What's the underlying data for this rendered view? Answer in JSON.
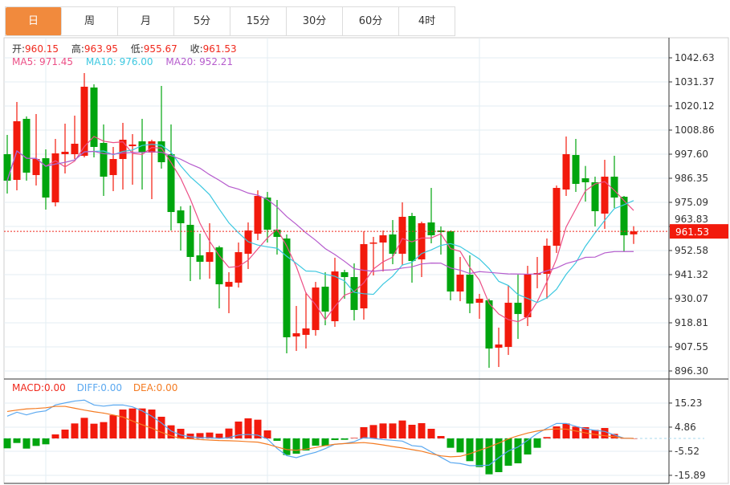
{
  "tabs": [
    {
      "label": "日",
      "active": true
    },
    {
      "label": "周",
      "active": false
    },
    {
      "label": "月",
      "active": false
    },
    {
      "label": "5分",
      "active": false
    },
    {
      "label": "15分",
      "active": false
    },
    {
      "label": "30分",
      "active": false
    },
    {
      "label": "60分",
      "active": false
    },
    {
      "label": "4时",
      "active": false
    }
  ],
  "ohlc_info": {
    "open_label": "开:",
    "open": "960.15",
    "high_label": "高:",
    "high": "963.95",
    "low_label": "低:",
    "low": "955.67",
    "close_label": "收:",
    "close": "961.53"
  },
  "ma_info": {
    "ma5": "MA5: 971.45",
    "ma10": "MA10: 976.00",
    "ma20": "MA20: 952.21"
  },
  "macd_info": {
    "macd": "MACD:0.00",
    "diff": "DIFF:0.00",
    "dea": "DEA:0.00"
  },
  "colors": {
    "up": "#f21a0c",
    "down": "#00a50e",
    "ma5": "#ec4f86",
    "ma10": "#3cc8e0",
    "ma20": "#b65ccd",
    "diff": "#5aa8f0",
    "dea": "#f47b22",
    "accent": "#f18a3d"
  },
  "chart_data": [
    {
      "type": "candlestick",
      "title": "",
      "y_ticks": [
        "1042.63",
        "1031.37",
        "1020.12",
        "1008.86",
        "997.60",
        "986.35",
        "975.09",
        "963.83",
        "952.58",
        "941.32",
        "930.07",
        "918.81",
        "907.55",
        "896.30"
      ],
      "ylim": [
        896.3,
        1042.63
      ],
      "current_price": "961.53",
      "ohlc": [
        [
          997.6,
          985.22,
          1006.61,
          979.21
        ],
        [
          985.59,
          1012.99,
          1022.0,
          980.71
        ],
        [
          1014.11,
          988.97,
          1015.24,
          985.22
        ],
        [
          987.84,
          995.35,
          1016.36,
          982.96
        ],
        [
          995.72,
          977.34,
          999.85,
          971.71
        ],
        [
          975.09,
          997.97,
          1004.73,
          973.21
        ],
        [
          997.6,
          998.73,
          1011.86,
          988.59
        ],
        [
          997.6,
          1002.48,
          1015.61,
          995.35
        ],
        [
          996.85,
          1029.12,
          1035.5,
          996.1
        ],
        [
          1028.75,
          1000.98,
          1030.25,
          996.1
        ],
        [
          1002.85,
          987.09,
          1011.49,
          978.09
        ],
        [
          987.84,
          995.35,
          1000.98,
          980.34
        ],
        [
          995.35,
          1004.35,
          1012.24,
          981.09
        ],
        [
          1001.35,
          1002.1,
          1006.98,
          983.34
        ],
        [
          1003.6,
          998.35,
          1014.11,
          981.09
        ],
        [
          998.35,
          1003.6,
          1004.35,
          976.59
        ],
        [
          1003.6,
          993.85,
          1029.5,
          990.85
        ],
        [
          997.6,
          970.58,
          1011.49,
          961.95
        ],
        [
          971.33,
          965.33,
          973.21,
          952.57
        ],
        [
          964.58,
          949.57,
          973.58,
          938.31
        ],
        [
          950.32,
          947.32,
          960.45,
          939.06
        ],
        [
          947.32,
          951.82,
          965.33,
          939.43
        ],
        [
          954.07,
          936.81,
          954.82,
          925.55
        ],
        [
          935.68,
          937.93,
          942.44,
          923.3
        ],
        [
          937.56,
          951.82,
          956.32,
          935.3
        ],
        [
          951.07,
          961.95,
          965.7,
          943.94
        ],
        [
          960.45,
          978.09,
          980.71,
          957.45
        ],
        [
          977.34,
          962.32,
          979.96,
          956.32
        ],
        [
          962.32,
          958.95,
          976.21,
          950.69
        ],
        [
          958.2,
          912.04,
          960.08,
          904.54
        ],
        [
          912.42,
          913.92,
          926.68,
          905.66
        ],
        [
          913.17,
          916.17,
          933.06,
          906.79
        ],
        [
          915.42,
          935.3,
          937.93,
          912.79
        ],
        [
          935.68,
          924.05,
          942.44,
          917.67
        ],
        [
          919.55,
          942.81,
          949.19,
          916.92
        ],
        [
          942.44,
          940.19,
          943.56,
          930.05
        ],
        [
          940.19,
          924.8,
          946.57,
          919.92
        ],
        [
          925.55,
          955.57,
          961.58,
          920.3
        ],
        [
          955.95,
          956.32,
          958.95,
          940.94
        ],
        [
          956.32,
          959.7,
          961.95,
          942.81
        ],
        [
          960.08,
          951.07,
          966.83,
          946.19
        ],
        [
          951.07,
          968.33,
          975.09,
          945.81
        ],
        [
          968.71,
          947.69,
          970.21,
          937.56
        ],
        [
          948.44,
          965.33,
          966.08,
          940.19
        ],
        [
          965.7,
          959.7,
          981.84,
          955.95
        ],
        [
          961.95,
          961.2,
          963.83,
          950.69
        ],
        [
          961.58,
          933.43,
          961.95,
          929.3
        ],
        [
          933.43,
          941.31,
          949.57,
          928.92
        ],
        [
          941.31,
          927.8,
          950.32,
          923.3
        ],
        [
          928.18,
          930.05,
          932.31,
          920.67
        ],
        [
          929.3,
          906.79,
          930.05,
          897.78
        ],
        [
          907.17,
          908.67,
          916.55,
          898.16
        ],
        [
          907.54,
          928.18,
          936.43,
          903.79
        ],
        [
          928.18,
          922.92,
          941.31,
          911.29
        ],
        [
          921.42,
          941.69,
          945.44,
          917.3
        ],
        [
          941.31,
          942.06,
          949.57,
          934.93
        ],
        [
          941.69,
          954.82,
          958.2,
          930.05
        ],
        [
          954.82,
          981.84,
          982.96,
          951.44
        ],
        [
          981.09,
          997.6,
          1005.86,
          978.09
        ],
        [
          997.22,
          983.72,
          1004.73,
          979.96
        ],
        [
          986.34,
          984.47,
          992.1,
          975.46
        ],
        [
          984.47,
          970.96,
          987.09,
          963.83
        ],
        [
          969.83,
          987.09,
          994.97,
          962.7
        ],
        [
          987.09,
          977.34,
          996.85,
          972.46
        ],
        [
          977.72,
          959.7,
          978.09,
          952.19
        ],
        [
          960.15,
          961.53,
          963.95,
          955.67
        ]
      ],
      "ma_periods": [
        5,
        10,
        20
      ]
    },
    {
      "type": "bar+line",
      "title": "MACD",
      "y_ticks": [
        "15.23",
        "4.86",
        "-5.52",
        "-15.89"
      ],
      "ylim": [
        -15.89,
        15.23
      ],
      "macd_hist": [
        -4.26,
        -1.96,
        -4.38,
        -3.23,
        -2.53,
        1.73,
        3.8,
        6.45,
        8.87,
        6.34,
        7.03,
        10.0,
        12.44,
        12.9,
        12.9,
        12.44,
        9.33,
        5.65,
        4.15,
        2.07,
        2.3,
        2.53,
        2.07,
        4.26,
        7.26,
        8.64,
        8.06,
        3.46,
        -1.04,
        -7.14,
        -6.57,
        -5.18,
        -3.11,
        -3.23,
        -0.69,
        -0.58,
        0.23,
        4.84,
        5.76,
        6.45,
        6.45,
        7.72,
        5.88,
        6.57,
        4.15,
        1.04,
        -4.03,
        -5.99,
        -9.79,
        -12.33,
        -15.44,
        -14.52,
        -11.75,
        -10.71,
        -6.91,
        -4.03,
        0.58,
        5.18,
        6.45,
        5.07,
        4.84,
        3.69,
        4.49,
        1.96,
        0.1,
        0
      ],
      "diff": [
        9.56,
        11.29,
        10.14,
        11.29,
        11.87,
        14.4,
        15.3,
        16.1,
        16.5,
        14.4,
        13.9,
        14.4,
        14.4,
        13.6,
        11.87,
        9.56,
        6.68,
        3.2,
        1.5,
        0.7,
        0.35,
        0.35,
        0,
        0.35,
        1.5,
        1.7,
        1.4,
        -0.2,
        -4.3,
        -7.4,
        -8.3,
        -7.0,
        -6.0,
        -4.4,
        -2.5,
        -2.2,
        -1.4,
        0.35,
        0,
        -0.5,
        -0.8,
        -1.15,
        -3.1,
        -3.5,
        -5.8,
        -8.1,
        -10.4,
        -10.8,
        -11.7,
        -11.7,
        -11.5,
        -8.3,
        -5.4,
        -3.7,
        -0.8,
        2.1,
        4.4,
        6.45,
        6.45,
        5.2,
        4.1,
        3.5,
        3.0,
        1.5,
        0.1,
        0
      ],
      "dea": [
        11.6,
        12.2,
        12.7,
        12.9,
        13.2,
        13.8,
        13.8,
        13.0,
        12.2,
        11.5,
        10.9,
        10.1,
        9.2,
        7.5,
        5.9,
        4.4,
        2.6,
        1.15,
        0,
        -0.2,
        -0.5,
        -0.7,
        -0.9,
        -1.0,
        -1.15,
        -1.4,
        -1.6,
        -2.5,
        -3.7,
        -4.8,
        -5.1,
        -4.6,
        -3.9,
        -3.1,
        -2.5,
        -2.2,
        -2.0,
        -1.8,
        -2.2,
        -2.8,
        -3.5,
        -4.1,
        -4.8,
        -5.5,
        -6.6,
        -7.5,
        -7.9,
        -7.7,
        -6.6,
        -5.1,
        -3.7,
        -2.0,
        -0.2,
        1.15,
        2.3,
        3.2,
        3.8,
        4.1,
        4.0,
        3.2,
        2.4,
        1.7,
        1.15,
        0.7,
        0.1,
        0
      ]
    }
  ]
}
